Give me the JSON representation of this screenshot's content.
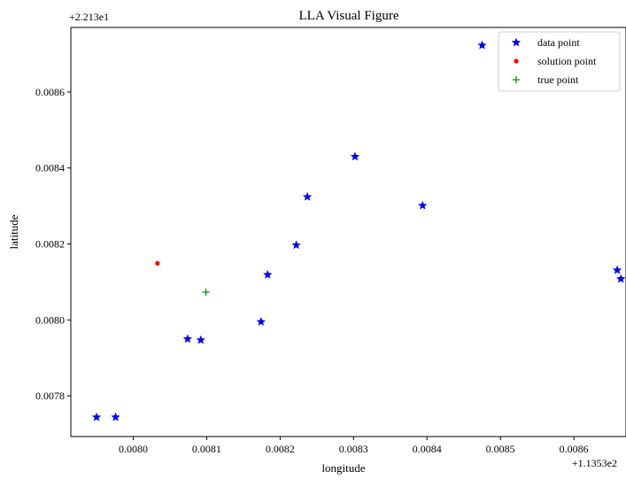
{
  "chart_data": {
    "type": "scatter",
    "title": "LLA Visual Figure",
    "xlabel": "longitude",
    "ylabel": "latitude",
    "x_offset_label": "+1.1353e2",
    "y_offset_label": "+2.213e1",
    "xlim": [
      0.007915,
      0.008671
    ],
    "ylim": [
      0.007693,
      0.00877
    ],
    "x_ticks": [
      0.008,
      0.0081,
      0.0082,
      0.0083,
      0.0084,
      0.0085,
      0.0086
    ],
    "x_tick_labels": [
      "0.0080",
      "0.0081",
      "0.0082",
      "0.0083",
      "0.0084",
      "0.0085",
      "0.0086"
    ],
    "y_ticks": [
      0.0078,
      0.008,
      0.0082,
      0.0084,
      0.0086
    ],
    "y_tick_labels": [
      "0.0078",
      "0.0080",
      "0.0082",
      "0.0084",
      "0.0086"
    ],
    "grid": false,
    "legend_position": "top-right",
    "series": [
      {
        "name": "data point",
        "marker": "star",
        "color": "#0000ff",
        "points": [
          {
            "x": 0.00795,
            "y": 0.007744
          },
          {
            "x": 0.007976,
            "y": 0.007744
          },
          {
            "x": 0.008074,
            "y": 0.00795
          },
          {
            "x": 0.008092,
            "y": 0.007947
          },
          {
            "x": 0.008174,
            "y": 0.007995
          },
          {
            "x": 0.008183,
            "y": 0.008119
          },
          {
            "x": 0.008222,
            "y": 0.008197
          },
          {
            "x": 0.008237,
            "y": 0.008324
          },
          {
            "x": 0.008302,
            "y": 0.00843
          },
          {
            "x": 0.008394,
            "y": 0.008301
          },
          {
            "x": 0.008475,
            "y": 0.008723
          },
          {
            "x": 0.008659,
            "y": 0.008131
          },
          {
            "x": 0.008664,
            "y": 0.008108
          }
        ]
      },
      {
        "name": "solution point",
        "marker": "dot",
        "color": "#ff0000",
        "points": [
          {
            "x": 0.008033,
            "y": 0.008149
          }
        ]
      },
      {
        "name": "true point",
        "marker": "plus",
        "color": "#008000",
        "points": [
          {
            "x": 0.008099,
            "y": 0.008073
          }
        ]
      }
    ]
  }
}
